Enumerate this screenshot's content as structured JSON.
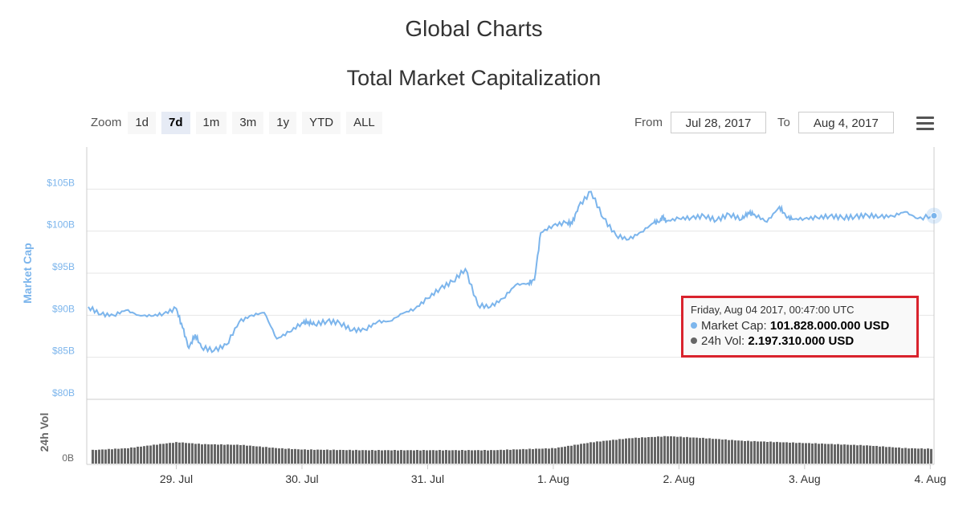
{
  "header": {
    "page_title": "Global Charts",
    "chart_title": "Total Market Capitalization"
  },
  "zoom": {
    "label": "Zoom",
    "buttons": [
      "1d",
      "7d",
      "1m",
      "3m",
      "1y",
      "YTD",
      "ALL"
    ],
    "active": "7d"
  },
  "range": {
    "from_label": "From",
    "from_value": "Jul 28, 2017",
    "to_label": "To",
    "to_value": "Aug 4, 2017"
  },
  "menu": {
    "icon": "hamburger-menu-icon"
  },
  "tooltip": {
    "date": "Friday, Aug 04 2017, 00:47:00 UTC",
    "market_cap_label": "Market Cap:",
    "market_cap_value": "101.828.000.000 USD",
    "vol_label": "24h Vol:",
    "vol_value": "2.197.310.000 USD"
  },
  "colors": {
    "market_cap": "#7cb5ec",
    "volume": "#666666",
    "grid": "#e6e6e6",
    "tooltip_border": "#d9232d"
  },
  "chart_data": {
    "type": "line",
    "title": "Total Market Capitalization",
    "x_ticks": [
      "29. Jul",
      "30. Jul",
      "31. Jul",
      "1. Aug",
      "2. Aug",
      "3. Aug",
      "4. Aug"
    ],
    "xlim_days": [
      28.3,
      35.03
    ],
    "market_cap": {
      "ylabel": "Market Cap",
      "y_ticks": [
        "$80B",
        "$85B",
        "$90B",
        "$95B",
        "$100B",
        "$105B"
      ],
      "ylim": [
        80,
        110
      ],
      "unit": "billion USD",
      "series": [
        {
          "name": "Market Cap",
          "x": [
            28.3,
            28.4,
            28.5,
            28.6,
            28.7,
            28.8,
            28.9,
            29.0,
            29.05,
            29.1,
            29.15,
            29.2,
            29.3,
            29.4,
            29.5,
            29.6,
            29.7,
            29.8,
            29.9,
            30.0,
            30.05,
            30.1,
            30.2,
            30.3,
            30.4,
            30.5,
            30.6,
            30.7,
            30.8,
            30.9,
            31.0,
            31.1,
            31.2,
            31.3,
            31.4,
            31.5,
            31.6,
            31.7,
            31.8,
            31.85,
            31.9,
            32.0,
            32.1,
            32.15,
            32.2,
            32.3,
            32.4,
            32.5,
            32.6,
            32.7,
            32.8,
            32.85,
            32.87,
            32.9,
            33.0,
            33.1,
            33.2,
            33.3,
            33.4,
            33.5,
            33.55,
            33.6,
            33.7,
            33.8,
            33.85,
            33.9,
            34.0,
            34.1,
            34.2,
            34.3,
            34.4,
            34.5,
            34.6,
            34.7,
            34.8,
            34.9,
            35.03
          ],
          "values": [
            91.0,
            90.1,
            90.0,
            90.6,
            90.0,
            89.9,
            90.2,
            90.8,
            88.5,
            86.1,
            87.7,
            86.2,
            85.8,
            86.5,
            89.2,
            90.0,
            90.3,
            87.2,
            88.0,
            89.1,
            89.2,
            88.9,
            89.3,
            89.1,
            88.2,
            88.3,
            89.2,
            89.3,
            90.2,
            90.8,
            92.0,
            93.2,
            94.0,
            95.5,
            91.2,
            91.0,
            92.0,
            93.6,
            93.8,
            94.2,
            99.8,
            100.7,
            101.0,
            100.9,
            102.9,
            104.7,
            101.5,
            99.5,
            99.0,
            99.9,
            101.0,
            101.2,
            101.7,
            101.2,
            101.5,
            101.6,
            101.8,
            101.3,
            102.0,
            101.4,
            102.2,
            102.0,
            101.1,
            102.9,
            101.8,
            101.4,
            101.5,
            101.6,
            101.8,
            101.6,
            101.7,
            101.9,
            101.7,
            101.8,
            102.3,
            101.5,
            101.828
          ]
        }
      ]
    },
    "volume": {
      "ylabel": "24h Vol",
      "y_ticks": [
        "0B"
      ],
      "unit": "relative",
      "series": [
        {
          "name": "24h Vol",
          "x": [
            28.3,
            28.6,
            28.9,
            29.0,
            29.2,
            29.5,
            29.8,
            30.0,
            30.5,
            31.0,
            31.5,
            32.0,
            32.3,
            32.6,
            32.9,
            33.2,
            33.5,
            33.8,
            34.1,
            34.5,
            34.8,
            35.03
          ],
          "values": [
            1.0,
            1.15,
            1.5,
            1.6,
            1.45,
            1.4,
            1.15,
            1.05,
            1.0,
            1.0,
            1.0,
            1.15,
            1.6,
            1.9,
            2.05,
            1.9,
            1.7,
            1.6,
            1.5,
            1.35,
            1.15,
            1.1
          ]
        }
      ]
    },
    "tooltip_point": {
      "x": 35.03,
      "y": 101.828
    },
    "grid": true,
    "legend": "none"
  }
}
